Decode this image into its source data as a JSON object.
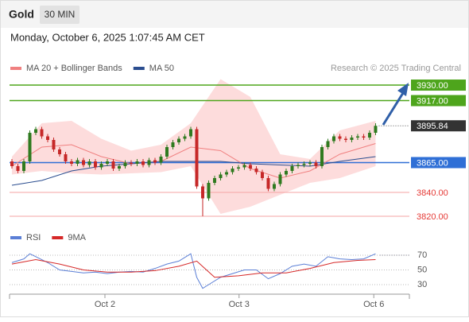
{
  "header": {
    "title": "Gold",
    "interval": "30 MIN",
    "datetime": "Monday, October 6, 2025 1:07:45 AM CET"
  },
  "chart_data": [
    {
      "type": "candlestick",
      "source": "Research © 2025 Trading Central",
      "up_color": "#2f7a1f",
      "down_color": "#c62828",
      "xlim": [
        -0.4,
        66.67
      ],
      "ylim": [
        3811.3,
        3954.7
      ],
      "xticks": [
        {
          "value": 15.6,
          "label": "Oct 2"
        },
        {
          "value": 38.1,
          "label": "Oct 3"
        },
        {
          "value": 60.7,
          "label": "Oct 6"
        }
      ],
      "candles": {
        "open": [
          3866,
          3862,
          3858,
          3866,
          3890,
          3893,
          3887,
          3884,
          3876,
          3872,
          3866,
          3864,
          3867,
          3863,
          3866,
          3861,
          3864,
          3866,
          3860,
          3862,
          3865,
          3864,
          3866,
          3863,
          3867,
          3865,
          3870,
          3878,
          3882,
          3885,
          3887,
          3893,
          3845,
          3835,
          3848,
          3852,
          3855,
          3857,
          3860,
          3861,
          3863,
          3860,
          3857,
          3852,
          3843,
          3847,
          3855,
          3858,
          3862,
          3863,
          3864,
          3865,
          3862,
          3878,
          3883,
          3887,
          3885,
          3884,
          3886,
          3887,
          3886,
          3890
        ],
        "high": [
          3868,
          3864,
          3868,
          3892,
          3895,
          3895,
          3889,
          3886,
          3878,
          3874,
          3868,
          3869,
          3869,
          3868,
          3868,
          3866,
          3868,
          3868,
          3864,
          3867,
          3867,
          3868,
          3868,
          3869,
          3869,
          3872,
          3880,
          3884,
          3887,
          3889,
          3895,
          3895,
          3847,
          3850,
          3854,
          3857,
          3859,
          3862,
          3863,
          3865,
          3865,
          3862,
          3859,
          3854,
          3849,
          3857,
          3860,
          3864,
          3865,
          3866,
          3867,
          3867,
          3880,
          3885,
          3889,
          3889,
          3887,
          3888,
          3889,
          3889,
          3892,
          3898
        ],
        "low": [
          3860,
          3856,
          3856,
          3864,
          3888,
          3885,
          3882,
          3874,
          3870,
          3864,
          3862,
          3862,
          3861,
          3861,
          3859,
          3859,
          3862,
          3858,
          3858,
          3860,
          3862,
          3862,
          3861,
          3861,
          3863,
          3863,
          3868,
          3876,
          3880,
          3883,
          3885,
          3843,
          3820,
          3833,
          3846,
          3850,
          3853,
          3855,
          3858,
          3859,
          3858,
          3855,
          3850,
          3841,
          3841,
          3845,
          3853,
          3856,
          3860,
          3861,
          3862,
          3860,
          3860,
          3876,
          3881,
          3883,
          3882,
          3882,
          3884,
          3884,
          3884,
          3888
        ],
        "close": [
          3862,
          3858,
          3866,
          3890,
          3893,
          3887,
          3884,
          3876,
          3872,
          3866,
          3864,
          3867,
          3863,
          3866,
          3861,
          3864,
          3866,
          3860,
          3862,
          3865,
          3864,
          3866,
          3863,
          3867,
          3865,
          3870,
          3878,
          3882,
          3885,
          3887,
          3893,
          3845,
          3835,
          3848,
          3852,
          3855,
          3857,
          3860,
          3861,
          3863,
          3860,
          3857,
          3852,
          3843,
          3847,
          3855,
          3858,
          3862,
          3863,
          3864,
          3865,
          3862,
          3878,
          3883,
          3887,
          3885,
          3884,
          3886,
          3887,
          3886,
          3890,
          3895.84
        ]
      },
      "series": [
        {
          "name": "MA 20 + Bollinger Bands",
          "color": "#f08080",
          "band_color": "#fcd3d3",
          "x": [
            0,
            5,
            10,
            15,
            20,
            25,
            30,
            35,
            40,
            45,
            50,
            55,
            61
          ],
          "values": [
            3862,
            3878,
            3880,
            3870,
            3864,
            3866,
            3878,
            3875,
            3860,
            3852,
            3858,
            3872,
            3881
          ],
          "upper": [
            3870,
            3898,
            3900,
            3885,
            3875,
            3880,
            3898,
            3935,
            3920,
            3872,
            3868,
            3892,
            3900
          ],
          "lower": [
            3855,
            3858,
            3856,
            3855,
            3856,
            3857,
            3862,
            3822,
            3828,
            3838,
            3848,
            3852,
            3862
          ]
        },
        {
          "name": "MA 50",
          "color": "#2a4d8f",
          "x": [
            0,
            5,
            10,
            15,
            20,
            25,
            30,
            35,
            40,
            45,
            50,
            55,
            61
          ],
          "values": [
            3846,
            3850,
            3858,
            3862,
            3864,
            3866,
            3866,
            3866,
            3864,
            3863,
            3862,
            3866,
            3870
          ]
        }
      ],
      "levels": [
        {
          "value": 3930,
          "label": "3930.00",
          "color": "#4ea51c",
          "style": "box"
        },
        {
          "value": 3917,
          "label": "3917.00",
          "color": "#4ea51c",
          "style": "box"
        },
        {
          "value": 3865,
          "label": "3865.00",
          "color": "#2f6fd6",
          "style": "box"
        },
        {
          "value": 3840,
          "label": "3840.00",
          "color": "#f5a3a3",
          "style": "text"
        },
        {
          "value": 3820,
          "label": "3820.00",
          "color": "#f5a3a3",
          "style": "text"
        }
      ],
      "last_price": {
        "value": 3895.84,
        "label": "3895.84",
        "color": "#333333"
      }
    },
    {
      "type": "line",
      "xlim": [
        -0.4,
        66.67
      ],
      "ylim": [
        19.2,
        81.9
      ],
      "yticks": [
        30,
        50,
        70
      ],
      "series": [
        {
          "name": "RSI",
          "color": "#5b7fd6",
          "x": [
            0,
            2,
            3,
            4,
            6,
            8,
            10,
            12,
            14,
            16,
            18,
            20,
            22,
            24,
            26,
            28,
            30,
            31,
            32,
            33,
            35,
            37,
            39,
            41,
            43,
            45,
            47,
            49,
            51,
            53,
            55,
            57,
            59,
            61
          ],
          "values": [
            60,
            65,
            72,
            68,
            60,
            50,
            48,
            46,
            47,
            45,
            47,
            48,
            47,
            52,
            58,
            62,
            72,
            40,
            25,
            30,
            40,
            45,
            50,
            50,
            38,
            45,
            55,
            58,
            55,
            68,
            65,
            64,
            65,
            72
          ]
        },
        {
          "name": "9MA",
          "color": "#d62828",
          "x": [
            0,
            4,
            8,
            12,
            16,
            20,
            24,
            28,
            31,
            34,
            38,
            42,
            46,
            50,
            54,
            58,
            61
          ],
          "values": [
            58,
            64,
            58,
            50,
            47,
            47,
            49,
            55,
            62,
            40,
            42,
            46,
            46,
            52,
            60,
            63,
            64
          ]
        }
      ]
    }
  ]
}
